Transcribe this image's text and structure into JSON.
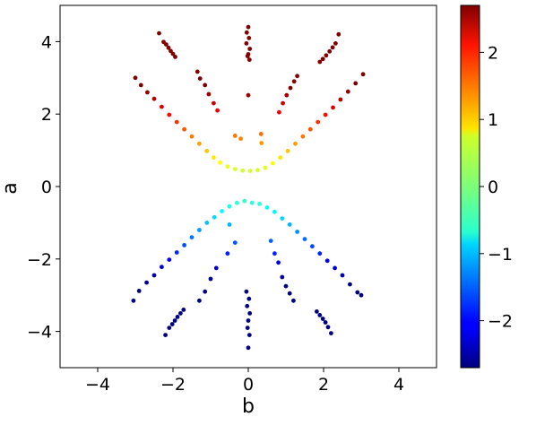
{
  "chart_data": {
    "type": "scatter",
    "title": "",
    "xlabel": "b",
    "ylabel": "a",
    "xlim": [
      -5,
      5
    ],
    "ylim": [
      -5,
      5
    ],
    "x_ticks": [
      -4,
      -2,
      0,
      2,
      4
    ],
    "y_ticks": [
      -4,
      -2,
      0,
      2,
      4
    ],
    "x_tick_labels": [
      "−4",
      "−2",
      "0",
      "2",
      "4"
    ],
    "y_tick_labels": [
      "−4",
      "−2",
      "0",
      "2",
      "4"
    ],
    "grid": false,
    "colorbar": {
      "colormap": "jet",
      "range": [
        -2.7,
        2.7
      ],
      "ticks": [
        -2,
        -1,
        0,
        1,
        2
      ],
      "tick_labels": [
        "−2",
        "−1",
        "0",
        "1",
        "2"
      ]
    },
    "series": [
      {
        "points": [
          [
            -2.37,
            4.23
          ],
          [
            -2.25,
            3.99
          ],
          [
            -2.18,
            3.92
          ],
          [
            -2.12,
            3.83
          ],
          [
            -2.06,
            3.74
          ],
          [
            -2.0,
            3.66
          ],
          [
            -1.94,
            3.58
          ],
          [
            0.0,
            4.4
          ],
          [
            -0.04,
            4.25
          ],
          [
            0.02,
            4.1
          ],
          [
            -0.05,
            3.95
          ],
          [
            0.04,
            3.8
          ],
          [
            0.0,
            3.65
          ],
          [
            0.03,
            3.5
          ],
          [
            -0.02,
            3.6
          ],
          [
            2.4,
            4.2
          ],
          [
            2.32,
            3.95
          ],
          [
            2.24,
            3.84
          ],
          [
            2.16,
            3.73
          ],
          [
            2.07,
            3.62
          ],
          [
            1.98,
            3.52
          ],
          [
            1.9,
            3.44
          ],
          [
            -1.35,
            3.17
          ],
          [
            -1.28,
            2.98
          ],
          [
            -1.15,
            2.8
          ],
          [
            -1.05,
            2.55
          ],
          [
            -0.92,
            2.3
          ],
          [
            -0.82,
            2.1
          ],
          [
            1.3,
            3.05
          ],
          [
            1.22,
            2.9
          ],
          [
            1.12,
            2.72
          ],
          [
            1.02,
            2.52
          ],
          [
            0.92,
            2.3
          ],
          [
            0.82,
            2.05
          ],
          [
            0.0,
            2.52
          ],
          [
            -0.35,
            1.4
          ],
          [
            -0.2,
            1.32
          ],
          [
            0.34,
            1.45
          ],
          [
            0.35,
            1.2
          ],
          [
            -3.0,
            3.0
          ],
          [
            -2.85,
            2.8
          ],
          [
            -2.68,
            2.6
          ],
          [
            -2.5,
            2.42
          ],
          [
            -2.3,
            2.2
          ],
          [
            -2.1,
            1.98
          ],
          [
            -1.9,
            1.78
          ],
          [
            -1.7,
            1.58
          ],
          [
            -1.5,
            1.38
          ],
          [
            -1.3,
            1.18
          ],
          [
            -1.1,
            0.98
          ],
          [
            -0.92,
            0.8
          ],
          [
            -0.75,
            0.66
          ],
          [
            -0.55,
            0.55
          ],
          [
            -0.35,
            0.48
          ],
          [
            -0.15,
            0.44
          ],
          [
            3.05,
            3.1
          ],
          [
            2.85,
            2.85
          ],
          [
            2.65,
            2.62
          ],
          [
            2.45,
            2.4
          ],
          [
            2.25,
            2.18
          ],
          [
            2.05,
            1.98
          ],
          [
            1.85,
            1.78
          ],
          [
            1.65,
            1.58
          ],
          [
            1.45,
            1.38
          ],
          [
            1.25,
            1.18
          ],
          [
            1.05,
            0.98
          ],
          [
            0.85,
            0.8
          ],
          [
            0.65,
            0.64
          ],
          [
            0.45,
            0.52
          ],
          [
            0.25,
            0.45
          ],
          [
            0.05,
            0.43
          ],
          [
            -0.1,
            -0.4
          ],
          [
            0.1,
            -0.45
          ],
          [
            -0.3,
            -0.45
          ],
          [
            0.3,
            -0.48
          ],
          [
            -0.5,
            -0.55
          ],
          [
            0.5,
            -0.58
          ],
          [
            -0.7,
            -0.68
          ],
          [
            0.7,
            -0.7
          ],
          [
            -0.9,
            -0.85
          ],
          [
            0.9,
            -0.88
          ],
          [
            -1.1,
            -1.0
          ],
          [
            1.1,
            -1.05
          ],
          [
            -1.3,
            -1.2
          ],
          [
            1.3,
            -1.25
          ],
          [
            -1.5,
            -1.4
          ],
          [
            1.5,
            -1.45
          ],
          [
            -1.7,
            -1.62
          ],
          [
            1.7,
            -1.65
          ],
          [
            -1.9,
            -1.82
          ],
          [
            1.9,
            -1.85
          ],
          [
            -2.1,
            -2.02
          ],
          [
            2.1,
            -2.05
          ],
          [
            -2.3,
            -2.22
          ],
          [
            2.3,
            -2.25
          ],
          [
            -2.5,
            -2.45
          ],
          [
            2.5,
            -2.45
          ],
          [
            -2.7,
            -2.65
          ],
          [
            2.7,
            -2.7
          ],
          [
            -2.9,
            -2.88
          ],
          [
            2.9,
            -2.92
          ],
          [
            -3.05,
            -3.15
          ],
          [
            3.0,
            -3.0
          ],
          [
            -0.5,
            -1.05
          ],
          [
            -0.35,
            -1.55
          ],
          [
            -0.55,
            -1.85
          ],
          [
            -0.85,
            -2.25
          ],
          [
            -1.0,
            -2.55
          ],
          [
            -1.15,
            -2.9
          ],
          [
            -1.3,
            -3.15
          ],
          [
            0.6,
            -1.5
          ],
          [
            0.7,
            -1.85
          ],
          [
            0.8,
            -2.1
          ],
          [
            0.9,
            -2.5
          ],
          [
            1.0,
            -2.75
          ],
          [
            1.1,
            -2.95
          ],
          [
            1.2,
            -3.15
          ],
          [
            -0.05,
            -2.9
          ],
          [
            0.02,
            -3.1
          ],
          [
            -0.03,
            -3.3
          ],
          [
            0.04,
            -3.5
          ],
          [
            0.0,
            -3.7
          ],
          [
            -0.02,
            -3.9
          ],
          [
            0.03,
            -4.1
          ],
          [
            0.0,
            -4.45
          ],
          [
            -2.2,
            -4.1
          ],
          [
            -2.1,
            -3.9
          ],
          [
            -2.02,
            -3.8
          ],
          [
            -1.95,
            -3.7
          ],
          [
            -1.88,
            -3.6
          ],
          [
            -1.8,
            -3.5
          ],
          [
            -1.72,
            -3.4
          ],
          [
            1.82,
            -3.45
          ],
          [
            1.9,
            -3.55
          ],
          [
            1.98,
            -3.65
          ],
          [
            2.05,
            -3.75
          ],
          [
            2.12,
            -3.88
          ],
          [
            2.2,
            -4.05
          ]
        ]
      }
    ]
  }
}
